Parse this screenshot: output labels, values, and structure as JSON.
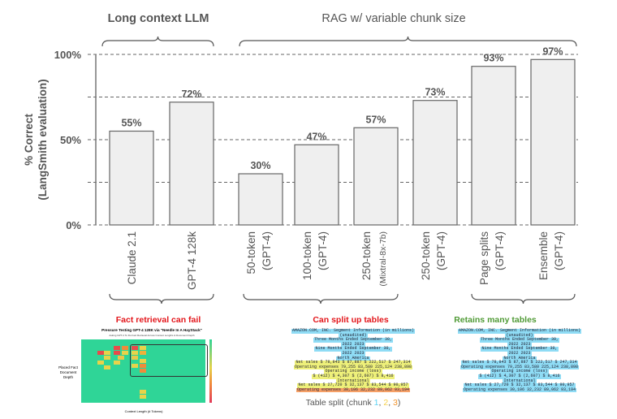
{
  "chart_data": {
    "type": "bar",
    "ylabel": "% Correct\n(LangSmith evaluation)",
    "ylabel_lines": [
      "% Correct",
      "(LangSmith evaluation)"
    ],
    "ylim": [
      0,
      100
    ],
    "yticks": [
      "0%",
      "50%",
      "100%"
    ],
    "grid": "dashed horizontal",
    "categories": [
      [
        "Claude 2.1"
      ],
      [
        "GPT-4 128k"
      ],
      [
        "50-token",
        "(GPT-4)"
      ],
      [
        "100-token",
        "(GPT-4)"
      ],
      [
        "250-token",
        "(Mixtral-8x-7b)"
      ],
      [
        "250-token",
        "(GPT-4)"
      ],
      [
        "Page splits",
        "(GPT-4)"
      ],
      [
        "Ensemble",
        "(GPT-4)"
      ]
    ],
    "values": [
      55,
      72,
      30,
      47,
      57,
      73,
      93,
      97
    ],
    "data_labels": [
      "55%",
      "72%",
      "30%",
      "47%",
      "57%",
      "73%",
      "93%",
      "97%"
    ],
    "groups": [
      {
        "label": "Long context LLM",
        "note": "Fact retrieval can fail",
        "note_color": "#e3161b"
      },
      {
        "label": "RAG w/ variable chunk size",
        "note": "Can split up tables",
        "note_color": "#e3161b"
      },
      {
        "note": "Retains many tables",
        "note_color": "#4f9a35"
      }
    ],
    "bar_color": "#efefef"
  },
  "heatmap_figure": {
    "title": "Pressure Testing GPT-4 128K via \"Needle In A HayStack\"",
    "subtitle": "Asking GPT-4 To Do Fact Retrieval Across Context Lengths & Document Depth",
    "ylabel": "Placed Fact Document Depth",
    "xlabel": "Context Length (# Tokens)"
  },
  "table_excerpt": {
    "lines": [
      "AMAZON.COM, INC. Segment Information (in millions)",
      "(unaudited)",
      "Three Months Ended September 30,",
      "2022 2023",
      "Nine Months Ended September 30,",
      "2022 2023",
      "North America",
      "Net sales $ 78,843 $ 87,887 $ 222,517 $ 247,314",
      "Operating expenses 79,255 83,580 225,124 238,898",
      "Operating income (loss)",
      "$ (412) $ 4,307 $ (2,607) $ 8,416",
      "International",
      "Net sales $ 27,720 $ 32,137 $ 83,544 $ 90,957",
      "Operating expenses 30,106 32,232 89,062 93,194"
    ],
    "split_caption": "Table split (chunk ",
    "chunks": [
      "1",
      "2",
      "3"
    ],
    "chunk_colors": [
      "#5ed3f3",
      "#f7d14a",
      "#f0932b"
    ],
    "sep": ", ",
    "close": ")"
  }
}
